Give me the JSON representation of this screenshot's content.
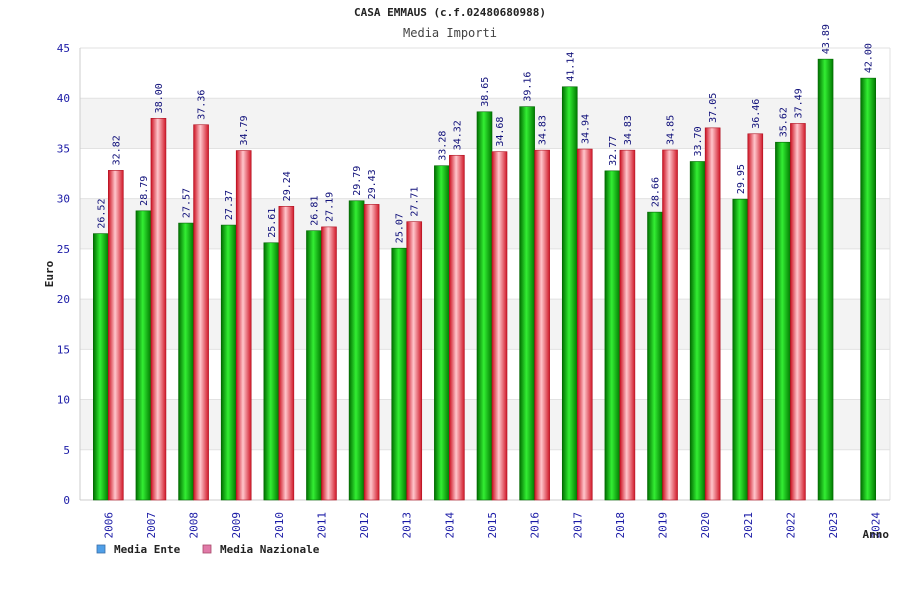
{
  "chart_data": {
    "type": "bar",
    "title": "CASA EMMAUS (c.f.02480680988)",
    "subtitle": "Media Importi",
    "ylabel": "Euro",
    "xlabel": "Anno",
    "ylim": [
      0,
      45
    ],
    "yticks": [
      0,
      5,
      10,
      15,
      20,
      25,
      30,
      35,
      40,
      45
    ],
    "grid": "horizontal bands",
    "legend_position": "bottom-left",
    "categories": [
      "2006",
      "2007",
      "2008",
      "2009",
      "2010",
      "2011",
      "2012",
      "2013",
      "2014",
      "2015",
      "2016",
      "2017",
      "2018",
      "2019",
      "2020",
      "2021",
      "2022",
      "2023",
      "2024"
    ],
    "series": [
      {
        "name": "Media Ente",
        "color": "#00aa00",
        "legend_color": "#4f9fe8",
        "values": [
          26.52,
          28.79,
          27.57,
          27.37,
          25.61,
          26.81,
          29.79,
          25.07,
          33.28,
          38.65,
          39.16,
          41.14,
          32.77,
          28.66,
          33.7,
          29.95,
          35.62,
          43.89,
          42.0
        ],
        "labels": [
          "26.52",
          "28.79",
          "27.57",
          "27.37",
          "25.61",
          "26.81",
          "29.79",
          "25.07",
          "33.28",
          "38.65",
          "39.16",
          "41.14",
          "32.77",
          "28.66",
          "33.70",
          "29.95",
          "35.62",
          "43.89",
          "42.00"
        ]
      },
      {
        "name": "Media Nazionale",
        "color": "#e0303a",
        "legend_color": "#e07aa8",
        "values": [
          32.82,
          38.0,
          37.36,
          34.79,
          29.24,
          27.19,
          29.43,
          27.71,
          34.32,
          34.68,
          34.83,
          34.94,
          34.83,
          34.85,
          37.05,
          36.46,
          37.49,
          null,
          null
        ],
        "labels": [
          "32.82",
          "38.00",
          "37.36",
          "34.79",
          "29.24",
          "27.19",
          "29.43",
          "27.71",
          "34.32",
          "34.68",
          "34.83",
          "34.94",
          "34.83",
          "34.85",
          "37.05",
          "36.46",
          "37.49",
          null,
          null
        ]
      }
    ]
  }
}
